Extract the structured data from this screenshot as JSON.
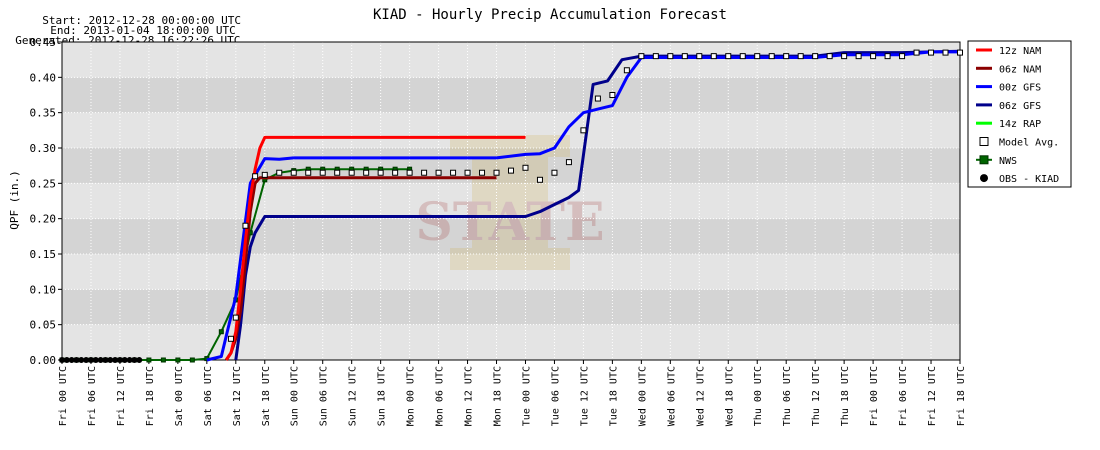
{
  "header": {
    "start_label": "Start:",
    "start_value": "2012-12-28 00:00:00 UTC",
    "end_label": "End:",
    "end_value": "2013-01-04 18:00:00 UTC",
    "generated_label": "Generated:",
    "generated_value": "2012-12-28 16:22:26 UTC"
  },
  "colors": {
    "nam12": "#ff0000",
    "nam06": "#8b0000",
    "gfs00": "#0000ff",
    "gfs06": "#00008b",
    "rap14": "#00ff00",
    "nws": "#006400",
    "obs": "#000000",
    "model_avg": "#ffffff",
    "band_dark": "#d4d4d4",
    "band_light": "#e4e4e4"
  },
  "chart_data": {
    "type": "line",
    "title": "KIAD - Hourly Precip Accumulation Forecast",
    "ylabel": "QPF (in.)",
    "xlabel": "",
    "x_unit": "hours since 2012-12-28 00 UTC",
    "ylim": [
      0,
      0.45
    ],
    "xlim": [
      0,
      186
    ],
    "yticks": [
      "0.00",
      "0.05",
      "0.10",
      "0.15",
      "0.20",
      "0.25",
      "0.30",
      "0.35",
      "0.40",
      "0.45"
    ],
    "xticks": [
      "Fri 00 UTC",
      "Fri 06 UTC",
      "Fri 12 UTC",
      "Fri 18 UTC",
      "Sat 00 UTC",
      "Sat 06 UTC",
      "Sat 12 UTC",
      "Sat 18 UTC",
      "Sun 00 UTC",
      "Sun 06 UTC",
      "Sun 12 UTC",
      "Sun 18 UTC",
      "Mon 00 UTC",
      "Mon 06 UTC",
      "Mon 12 UTC",
      "Mon 18 UTC",
      "Tue 00 UTC",
      "Tue 06 UTC",
      "Tue 12 UTC",
      "Tue 18 UTC",
      "Wed 00 UTC",
      "Wed 06 UTC",
      "Wed 12 UTC",
      "Wed 18 UTC",
      "Thu 00 UTC",
      "Thu 06 UTC",
      "Thu 12 UTC",
      "Thu 18 UTC",
      "Fri 00 UTC",
      "Fri 06 UTC",
      "Fri 12 UTC",
      "Fri 18 UTC"
    ],
    "grid": true,
    "legend_position": "right",
    "series": [
      {
        "name": "12z NAM",
        "color": "#ff0000",
        "marker": "none",
        "x": [
          34,
          35,
          36,
          37,
          38,
          39,
          40,
          41,
          42,
          48,
          60,
          72,
          84,
          96
        ],
        "y": [
          0.0,
          0.01,
          0.04,
          0.1,
          0.17,
          0.23,
          0.27,
          0.3,
          0.315,
          0.315,
          0.315,
          0.315,
          0.315,
          0.315
        ]
      },
      {
        "name": "06z NAM",
        "color": "#8b0000",
        "marker": "none",
        "x": [
          34,
          35,
          36,
          37,
          38,
          39,
          40,
          41,
          42,
          48,
          60,
          72,
          84,
          90
        ],
        "y": [
          0.0,
          0.01,
          0.03,
          0.07,
          0.14,
          0.21,
          0.25,
          0.258,
          0.258,
          0.258,
          0.258,
          0.258,
          0.258,
          0.258
        ]
      },
      {
        "name": "00z GFS",
        "color": "#0000ff",
        "marker": "none",
        "x": [
          30,
          33,
          36,
          39,
          42,
          45,
          48,
          54,
          60,
          66,
          72,
          78,
          84,
          90,
          96,
          99,
          102,
          105,
          108,
          111,
          114,
          117,
          120,
          126,
          132,
          138,
          144,
          150,
          156,
          162,
          168,
          174,
          180,
          186
        ],
        "y": [
          0.0,
          0.005,
          0.09,
          0.25,
          0.285,
          0.284,
          0.286,
          0.286,
          0.286,
          0.286,
          0.286,
          0.286,
          0.286,
          0.286,
          0.291,
          0.292,
          0.3,
          0.33,
          0.35,
          0.355,
          0.36,
          0.4,
          0.428,
          0.428,
          0.428,
          0.428,
          0.428,
          0.428,
          0.428,
          0.432,
          0.432,
          0.432,
          0.436,
          0.436
        ]
      },
      {
        "name": "06z GFS",
        "color": "#00008b",
        "marker": "none",
        "x": [
          36,
          37,
          38,
          39,
          40,
          42,
          48,
          60,
          72,
          84,
          93,
          96,
          99,
          102,
          105,
          107,
          110,
          113,
          116,
          120,
          126,
          132,
          138,
          144,
          150,
          156,
          162,
          168,
          174,
          180,
          186
        ],
        "y": [
          0.0,
          0.05,
          0.12,
          0.16,
          0.18,
          0.203,
          0.203,
          0.203,
          0.203,
          0.203,
          0.203,
          0.203,
          0.21,
          0.22,
          0.23,
          0.24,
          0.39,
          0.395,
          0.425,
          0.43,
          0.43,
          0.43,
          0.43,
          0.43,
          0.43,
          0.43,
          0.435,
          0.435,
          0.435,
          0.436,
          0.437
        ]
      },
      {
        "name": "14z RAP",
        "color": "#00ff00",
        "marker": "none",
        "x": [],
        "y": []
      },
      {
        "name": "Model Avg.",
        "color": "#ffffff",
        "marker": "square",
        "x": [
          35,
          36,
          38,
          40,
          42,
          45,
          48,
          51,
          54,
          57,
          60,
          63,
          66,
          69,
          72,
          75,
          78,
          81,
          84,
          87,
          90,
          93,
          96,
          99,
          102,
          105,
          108,
          111,
          114,
          117,
          120,
          123,
          126,
          129,
          132,
          135,
          138,
          141,
          144,
          147,
          150,
          153,
          156,
          159,
          162,
          165,
          168,
          171,
          174,
          177,
          180,
          183,
          186
        ],
        "y": [
          0.03,
          0.06,
          0.19,
          0.26,
          0.262,
          0.265,
          0.265,
          0.265,
          0.265,
          0.265,
          0.265,
          0.265,
          0.265,
          0.265,
          0.265,
          0.265,
          0.265,
          0.265,
          0.265,
          0.265,
          0.265,
          0.268,
          0.272,
          0.255,
          0.265,
          0.28,
          0.325,
          0.37,
          0.375,
          0.41,
          0.43,
          0.43,
          0.43,
          0.43,
          0.43,
          0.43,
          0.43,
          0.43,
          0.43,
          0.43,
          0.43,
          0.43,
          0.43,
          0.43,
          0.43,
          0.43,
          0.43,
          0.43,
          0.43,
          0.435,
          0.435,
          0.435,
          0.435
        ]
      },
      {
        "name": "NWS",
        "color": "#006400",
        "marker": "square",
        "x": [
          0,
          3,
          6,
          9,
          12,
          15,
          18,
          21,
          24,
          27,
          30,
          33,
          36,
          39,
          42,
          45,
          48,
          51,
          54,
          57,
          60,
          63,
          66,
          69,
          72
        ],
        "y": [
          0,
          0,
          0,
          0,
          0,
          0,
          0,
          0,
          0,
          0,
          0.002,
          0.04,
          0.085,
          0.18,
          0.255,
          0.265,
          0.268,
          0.27,
          0.27,
          0.27,
          0.27,
          0.27,
          0.27,
          0.27,
          0.27
        ]
      },
      {
        "name": "OBS - KIAD",
        "color": "#000000",
        "marker": "circle",
        "x": [
          0,
          1,
          2,
          3,
          4,
          5,
          6,
          7,
          8,
          9,
          10,
          11,
          12,
          13,
          14,
          15,
          16
        ],
        "y": [
          0,
          0,
          0,
          0,
          0,
          0,
          0,
          0,
          0,
          0,
          0,
          0,
          0,
          0,
          0,
          0,
          0
        ]
      }
    ]
  }
}
